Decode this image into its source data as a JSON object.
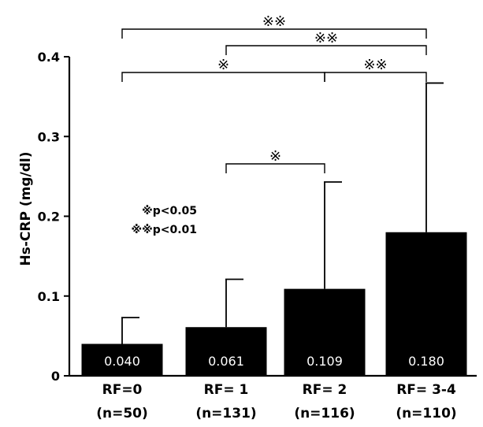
{
  "chart_data": {
    "type": "bar",
    "ylabel": "Hs-CRP (mg/dl)",
    "ylim": [
      0,
      0.4
    ],
    "yticks": [
      "0",
      "0.1",
      "0.2",
      "0.3",
      "0.4"
    ],
    "categories": [
      "RF=0",
      "RF= 1",
      "RF= 2",
      "RF= 3-4"
    ],
    "category_n": [
      "(n=50)",
      "(n=131)",
      "(n=116)",
      "(n=110)"
    ],
    "values": [
      0.04,
      0.061,
      0.109,
      0.18
    ],
    "value_labels": [
      "0.040",
      "0.061",
      "0.109",
      "0.180"
    ],
    "error_upper": [
      0.073,
      0.121,
      0.243,
      0.367
    ],
    "bar_color": "#000000",
    "comparisons": [
      {
        "from": 0,
        "to": 3,
        "mark": "※※"
      },
      {
        "from": 1,
        "to": 3,
        "mark": "※※"
      },
      {
        "from": 0,
        "to": 2,
        "mark": "※"
      },
      {
        "from": 2,
        "to": 3,
        "mark": "※※"
      },
      {
        "from": 1,
        "to": 2,
        "mark": "※"
      }
    ],
    "legend": [
      "※p<0.05",
      "※※p<0.01"
    ]
  }
}
